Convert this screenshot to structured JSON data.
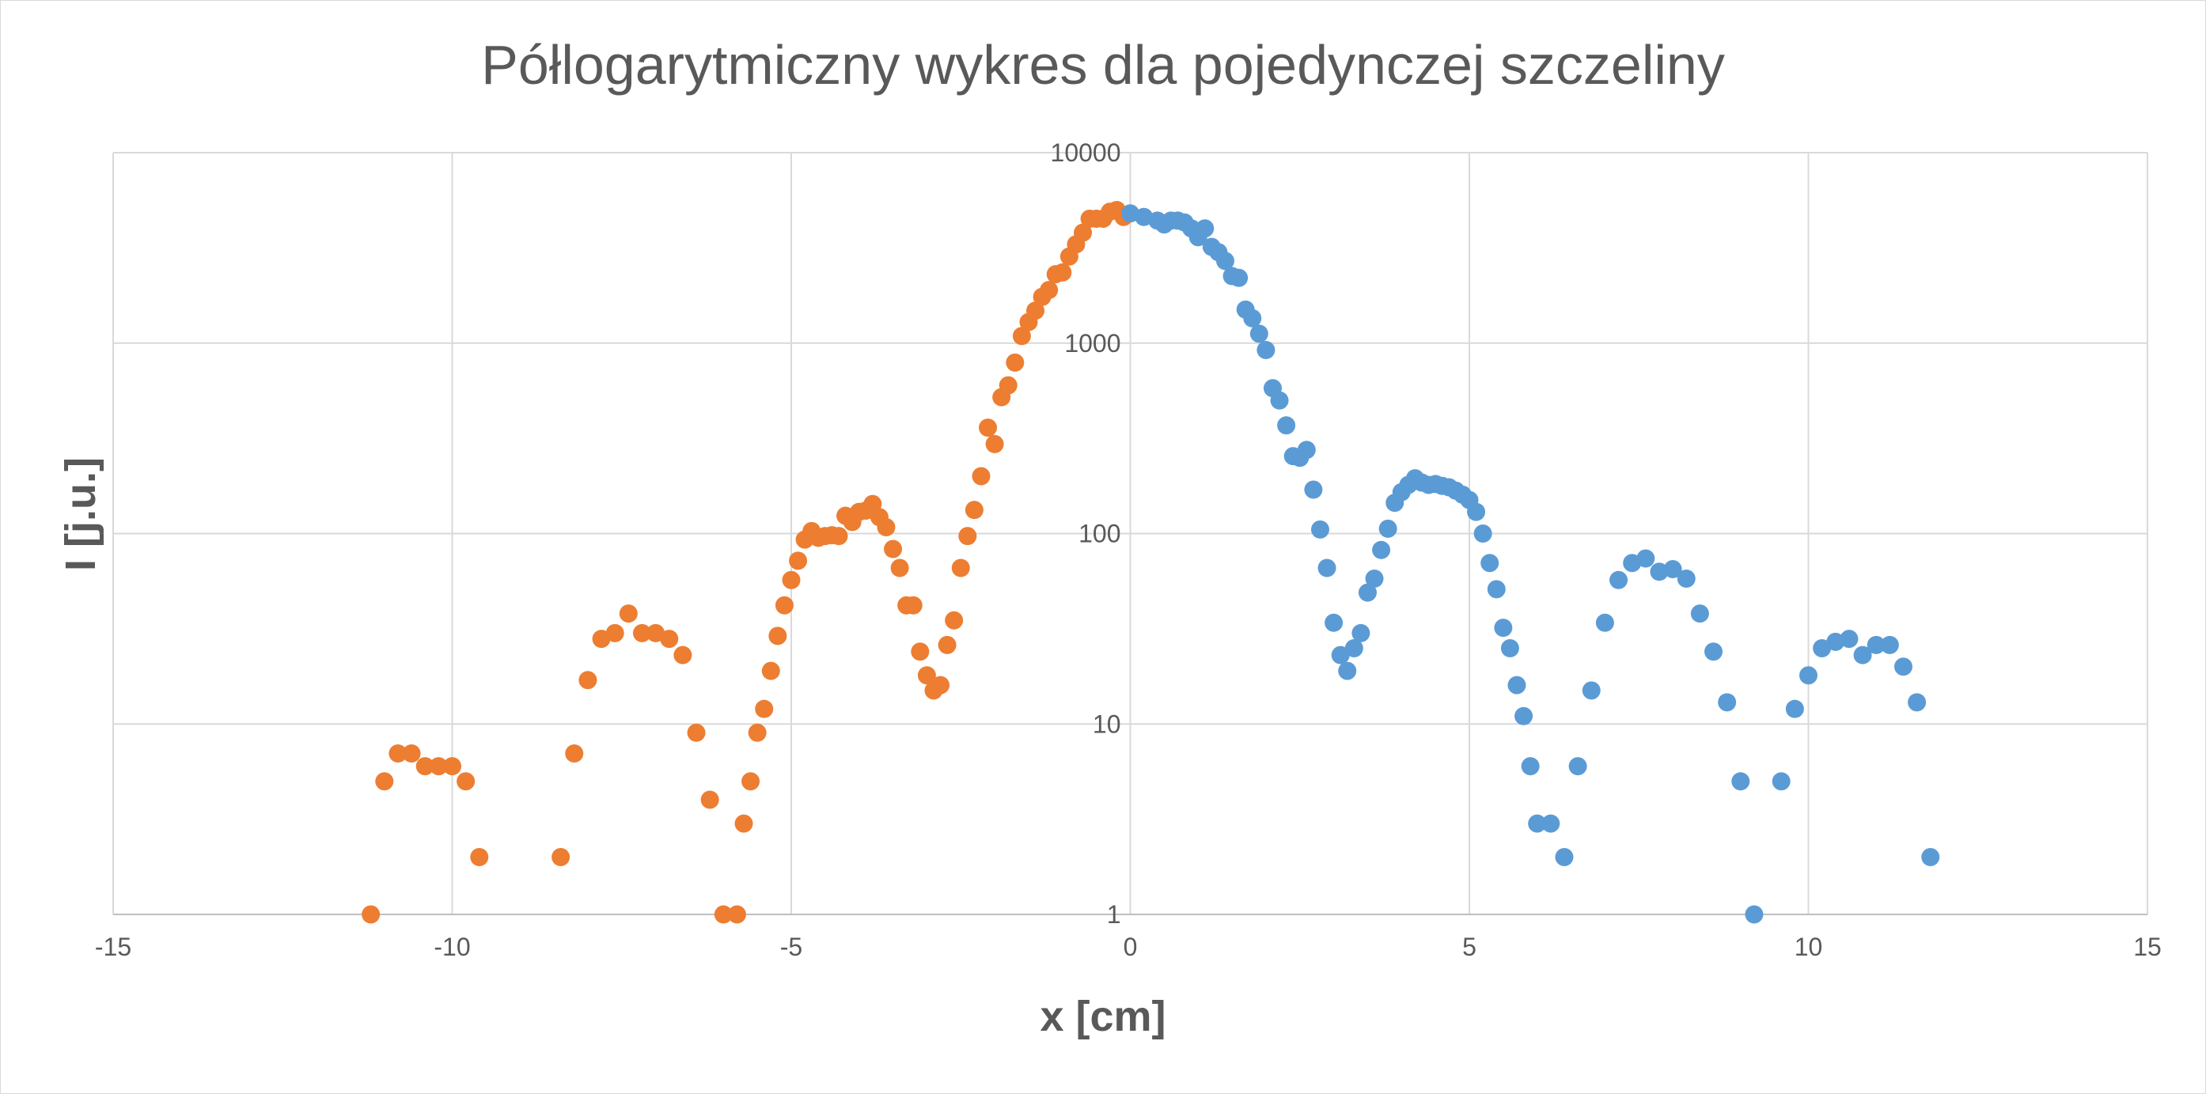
{
  "chart_data": {
    "type": "scatter",
    "title": "Półlogarytmiczny wykres dla pojedynczej szczeliny",
    "xlabel": "x [cm]",
    "ylabel": "I [j.u.]",
    "xlim": [
      -15,
      15
    ],
    "ylim": [
      1,
      10000
    ],
    "yscale": "log",
    "grid": true,
    "x_ticks": [
      -15,
      -10,
      -5,
      0,
      5,
      10,
      15
    ],
    "x_tick_labels": [
      "-15",
      "-10",
      "-5",
      "0",
      "5",
      "10",
      "15"
    ],
    "y_ticks": [
      1,
      10,
      100,
      1000,
      10000
    ],
    "y_tick_labels": [
      "1",
      "10",
      "100",
      "1000",
      "10000"
    ],
    "series": [
      {
        "color": "#ed7d31",
        "points": [
          [
            -11.2,
            1
          ],
          [
            -11.0,
            5
          ],
          [
            -10.8,
            7
          ],
          [
            -10.6,
            7
          ],
          [
            -10.4,
            6
          ],
          [
            -10.2,
            6
          ],
          [
            -10.0,
            6
          ],
          [
            -9.8,
            5
          ],
          [
            -9.6,
            2
          ],
          [
            -8.4,
            2
          ],
          [
            -8.2,
            7
          ],
          [
            -8.0,
            17
          ],
          [
            -7.8,
            28
          ],
          [
            -7.6,
            30
          ],
          [
            -7.4,
            38
          ],
          [
            -7.2,
            30
          ],
          [
            -7.0,
            30
          ],
          [
            -6.8,
            28
          ],
          [
            -6.6,
            23
          ],
          [
            -6.4,
            9
          ],
          [
            -6.2,
            4
          ],
          [
            -6.0,
            1
          ],
          [
            -5.8,
            1
          ],
          [
            -5.7,
            3
          ],
          [
            -5.6,
            5
          ],
          [
            -5.5,
            9
          ],
          [
            -5.4,
            12
          ],
          [
            -5.3,
            19
          ],
          [
            -5.2,
            29
          ],
          [
            -5.1,
            42
          ],
          [
            -5.0,
            57
          ],
          [
            -4.9,
            72
          ],
          [
            -4.8,
            93
          ],
          [
            -4.7,
            103
          ],
          [
            -4.6,
            95
          ],
          [
            -4.5,
            97
          ],
          [
            -4.4,
            98
          ],
          [
            -4.3,
            97
          ],
          [
            -4.2,
            124
          ],
          [
            -4.1,
            115
          ],
          [
            -4.0,
            130
          ],
          [
            -3.9,
            132
          ],
          [
            -3.8,
            143
          ],
          [
            -3.7,
            122
          ],
          [
            -3.6,
            108
          ],
          [
            -3.5,
            83
          ],
          [
            -3.4,
            66
          ],
          [
            -3.3,
            42
          ],
          [
            -3.2,
            42
          ],
          [
            -3.1,
            24
          ],
          [
            -3.0,
            18
          ],
          [
            -2.9,
            15
          ],
          [
            -2.8,
            16
          ],
          [
            -2.7,
            26
          ],
          [
            -2.6,
            35
          ],
          [
            -2.5,
            66
          ],
          [
            -2.4,
            97
          ],
          [
            -2.3,
            133
          ],
          [
            -2.2,
            200
          ],
          [
            -2.1,
            360
          ],
          [
            -2.0,
            295
          ],
          [
            -1.9,
            520
          ],
          [
            -1.8,
            600
          ],
          [
            -1.7,
            790
          ],
          [
            -1.6,
            1090
          ],
          [
            -1.5,
            1290
          ],
          [
            -1.4,
            1480
          ],
          [
            -1.3,
            1750
          ],
          [
            -1.2,
            1900
          ],
          [
            -1.1,
            2300
          ],
          [
            -1.0,
            2350
          ],
          [
            -0.9,
            2850
          ],
          [
            -0.8,
            3300
          ],
          [
            -0.7,
            3800
          ],
          [
            -0.6,
            4500
          ],
          [
            -0.5,
            4500
          ],
          [
            -0.4,
            4500
          ],
          [
            -0.3,
            4900
          ],
          [
            -0.2,
            5000
          ],
          [
            -0.1,
            4600
          ]
        ]
      },
      {
        "color": "#5b9bd5",
        "points": [
          [
            0.0,
            4800
          ],
          [
            0.2,
            4600
          ],
          [
            0.4,
            4400
          ],
          [
            0.5,
            4200
          ],
          [
            0.6,
            4400
          ],
          [
            0.7,
            4400
          ],
          [
            0.8,
            4300
          ],
          [
            0.9,
            4000
          ],
          [
            1.0,
            3600
          ],
          [
            1.1,
            4000
          ],
          [
            1.2,
            3200
          ],
          [
            1.3,
            3000
          ],
          [
            1.4,
            2700
          ],
          [
            1.5,
            2250
          ],
          [
            1.6,
            2200
          ],
          [
            1.7,
            1500
          ],
          [
            1.8,
            1350
          ],
          [
            1.9,
            1120
          ],
          [
            2.0,
            920
          ],
          [
            2.1,
            580
          ],
          [
            2.2,
            500
          ],
          [
            2.3,
            370
          ],
          [
            2.4,
            255
          ],
          [
            2.5,
            250
          ],
          [
            2.6,
            275
          ],
          [
            2.7,
            170
          ],
          [
            2.8,
            105
          ],
          [
            2.9,
            66
          ],
          [
            3.0,
            34
          ],
          [
            3.1,
            23
          ],
          [
            3.2,
            19
          ],
          [
            3.3,
            25
          ],
          [
            3.4,
            30
          ],
          [
            3.5,
            49
          ],
          [
            3.6,
            58
          ],
          [
            3.7,
            82
          ],
          [
            3.8,
            106
          ],
          [
            3.9,
            145
          ],
          [
            4.0,
            165
          ],
          [
            4.1,
            180
          ],
          [
            4.2,
            195
          ],
          [
            4.3,
            185
          ],
          [
            4.4,
            180
          ],
          [
            4.5,
            182
          ],
          [
            4.6,
            178
          ],
          [
            4.7,
            175
          ],
          [
            4.8,
            168
          ],
          [
            4.9,
            160
          ],
          [
            5.0,
            150
          ],
          [
            5.1,
            130
          ],
          [
            5.2,
            100
          ],
          [
            5.3,
            70
          ],
          [
            5.4,
            51
          ],
          [
            5.5,
            32
          ],
          [
            5.6,
            25
          ],
          [
            5.7,
            16
          ],
          [
            5.8,
            11
          ],
          [
            5.9,
            6
          ],
          [
            6.0,
            3
          ],
          [
            6.2,
            3
          ],
          [
            6.4,
            2
          ],
          [
            6.6,
            6
          ],
          [
            6.8,
            15
          ],
          [
            7.0,
            34
          ],
          [
            7.2,
            57
          ],
          [
            7.4,
            70
          ],
          [
            7.6,
            74
          ],
          [
            7.8,
            63
          ],
          [
            8.0,
            65
          ],
          [
            8.2,
            58
          ],
          [
            8.4,
            38
          ],
          [
            8.6,
            24
          ],
          [
            8.8,
            13
          ],
          [
            9.0,
            5
          ],
          [
            9.2,
            1
          ],
          [
            9.6,
            5
          ],
          [
            9.8,
            12
          ],
          [
            10.0,
            18
          ],
          [
            10.2,
            25
          ],
          [
            10.4,
            27
          ],
          [
            10.6,
            28
          ],
          [
            10.8,
            23
          ],
          [
            11.0,
            26
          ],
          [
            11.2,
            26
          ],
          [
            11.4,
            20
          ],
          [
            11.6,
            13
          ],
          [
            11.8,
            2
          ]
        ]
      }
    ]
  }
}
